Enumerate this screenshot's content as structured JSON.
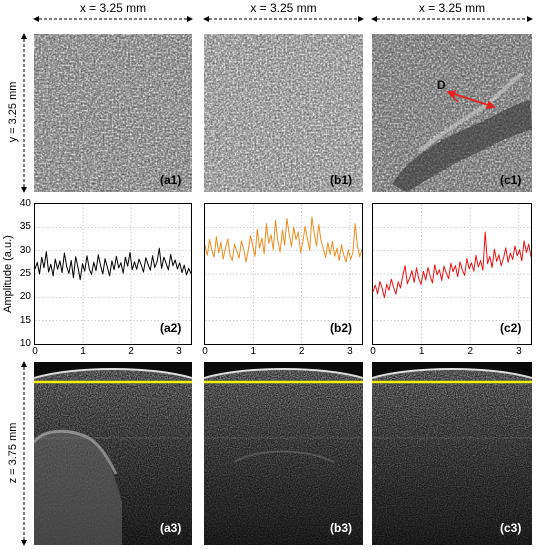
{
  "dims": {
    "x_labels": [
      "x = 3.25 mm",
      "x = 3.25 mm",
      "x = 3.25 mm"
    ],
    "y_label": "y = 3.25 mm",
    "z_label": "z = 3.75 mm"
  },
  "annotation": {
    "text": "D",
    "arrow_color": "#e82020"
  },
  "labels": {
    "a1": "(a1)",
    "b1": "(b1)",
    "c1": "(c1)",
    "a2": "(a2)",
    "b2": "(b2)",
    "c2": "(c2)",
    "a3": "(a3)",
    "b3": "(b3)",
    "c3": "(c3)"
  },
  "colors": {
    "a2": "#000000",
    "b2": "#f08c1e",
    "c2": "#ee1111",
    "surface_line": "#f2f20a"
  },
  "chart_data": [
    {
      "type": "line",
      "panel": "a2",
      "ylabel": "Amplitude (a.u.)",
      "xlim": [
        0,
        3.25
      ],
      "ylim": [
        10,
        40
      ],
      "x_ticks": [
        "0",
        "1",
        "2",
        "3"
      ],
      "y_ticks": [
        "10",
        "15",
        "20",
        "25",
        "30",
        "35",
        "40"
      ],
      "grid": true,
      "series": [
        {
          "values": [
            26.1,
            27.5,
            25.0,
            28.6,
            26.3,
            29.8,
            25.4,
            27.1,
            24.6,
            28.2,
            26.0,
            27.8,
            25.3,
            29.5,
            26.6,
            25.1,
            27.9,
            24.2,
            28.7,
            26.4,
            23.8,
            27.2,
            25.6,
            28.9,
            26.1,
            24.9,
            27.5,
            25.7,
            29.1,
            26.8,
            25.0,
            28.3,
            26.5,
            24.6,
            27.8,
            25.9,
            28.8,
            26.3,
            27.4,
            25.2,
            28.6,
            26.7,
            29.6,
            25.9,
            27.6,
            26.0,
            28.2,
            26.9,
            25.4,
            28.5,
            27.1,
            25.8,
            28.9,
            26.4,
            27.7,
            30.5,
            26.2,
            28.6,
            27.3,
            25.9,
            29.2,
            26.8,
            28.0,
            26.1,
            27.4,
            25.3,
            26.9,
            24.8,
            26.2,
            25.1
          ]
        }
      ]
    },
    {
      "type": "line",
      "panel": "b2",
      "xlim": [
        0,
        3.25
      ],
      "ylim": [
        10,
        40
      ],
      "x_ticks": [
        "0",
        "1",
        "2",
        "3"
      ],
      "grid": true,
      "series": [
        {
          "values": [
            31.2,
            29.0,
            32.4,
            30.1,
            28.6,
            33.0,
            29.5,
            31.8,
            28.2,
            30.6,
            32.5,
            29.1,
            27.9,
            31.4,
            29.8,
            28.4,
            32.1,
            30.3,
            27.6,
            29.9,
            33.2,
            31.0,
            28.8,
            34.6,
            30.5,
            32.7,
            29.3,
            35.8,
            31.6,
            33.4,
            30.2,
            36.5,
            32.1,
            29.7,
            34.4,
            31.2,
            36.9,
            33.5,
            30.8,
            35.1,
            32.4,
            34.0,
            29.6,
            31.8,
            35.2,
            32.6,
            30.1,
            37.2,
            33.8,
            31.0,
            35.6,
            32.2,
            30.4,
            28.6,
            31.7,
            29.2,
            32.0,
            28.8,
            30.5,
            27.9,
            31.3,
            29.0,
            27.6,
            30.2,
            28.1,
            29.6,
            35.8,
            31.0,
            28.7,
            30.3
          ]
        }
      ]
    },
    {
      "type": "line",
      "panel": "c2",
      "xlim": [
        0,
        3.25
      ],
      "ylim": [
        10,
        40
      ],
      "x_ticks": [
        "0",
        "1",
        "2",
        "3"
      ],
      "grid": true,
      "series": [
        {
          "values": [
            21.2,
            22.6,
            20.8,
            23.4,
            21.9,
            19.9,
            22.8,
            21.5,
            23.9,
            22.1,
            20.7,
            23.3,
            22.0,
            24.6,
            26.8,
            22.9,
            24.1,
            25.7,
            23.2,
            26.3,
            24.0,
            22.8,
            25.6,
            23.7,
            26.4,
            24.5,
            23.1,
            27.0,
            24.8,
            25.9,
            23.6,
            26.7,
            25.2,
            24.0,
            27.3,
            25.5,
            26.8,
            24.4,
            27.6,
            25.9,
            24.7,
            28.3,
            26.1,
            27.4,
            25.6,
            29.0,
            26.5,
            27.9,
            25.8,
            34.0,
            27.2,
            28.8,
            26.4,
            30.3,
            27.7,
            29.1,
            26.8,
            28.4,
            30.6,
            27.5,
            29.5,
            28.1,
            31.0,
            28.9,
            30.2,
            27.8,
            32.1,
            29.6,
            31.4,
            28.7
          ]
        }
      ]
    }
  ]
}
